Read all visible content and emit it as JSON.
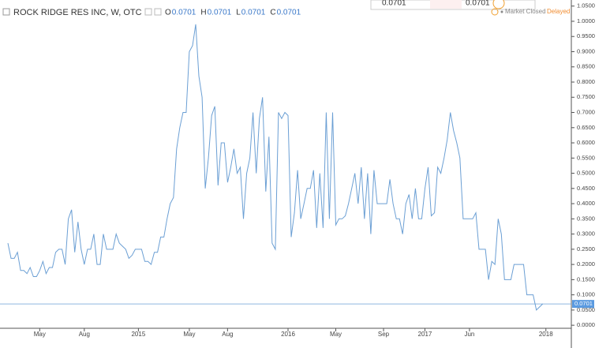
{
  "chart_data": {
    "type": "line",
    "title": "ROCK RIDGE RES INC, W, OTC",
    "ohlc": [
      {
        "key": "O",
        "value": "0.0701"
      },
      {
        "key": "H",
        "value": "0.0701"
      },
      {
        "key": "L",
        "value": "0.0701"
      },
      {
        "key": "C",
        "value": "0.0701"
      }
    ],
    "quote_boxes": [
      "0.0701",
      "0.0701"
    ],
    "status": "Market Closed",
    "delay": "Delayed",
    "color": "#6b9fd4",
    "values": [
      0.27,
      0.22,
      0.22,
      0.24,
      0.18,
      0.18,
      0.17,
      0.19,
      0.16,
      0.16,
      0.18,
      0.21,
      0.17,
      0.19,
      0.19,
      0.24,
      0.25,
      0.25,
      0.2,
      0.35,
      0.38,
      0.24,
      0.34,
      0.25,
      0.2,
      0.25,
      0.25,
      0.3,
      0.2,
      0.2,
      0.3,
      0.25,
      0.25,
      0.25,
      0.3,
      0.27,
      0.26,
      0.25,
      0.22,
      0.23,
      0.25,
      0.25,
      0.25,
      0.21,
      0.21,
      0.2,
      0.24,
      0.24,
      0.29,
      0.29,
      0.35,
      0.4,
      0.42,
      0.58,
      0.65,
      0.7,
      0.7,
      0.9,
      0.92,
      0.99,
      0.82,
      0.75,
      0.45,
      0.55,
      0.69,
      0.72,
      0.46,
      0.6,
      0.6,
      0.47,
      0.52,
      0.58,
      0.5,
      0.52,
      0.35,
      0.5,
      0.55,
      0.7,
      0.5,
      0.68,
      0.75,
      0.44,
      0.62,
      0.27,
      0.25,
      0.7,
      0.68,
      0.7,
      0.69,
      0.29,
      0.37,
      0.51,
      0.35,
      0.4,
      0.45,
      0.45,
      0.51,
      0.32,
      0.5,
      0.32,
      0.7,
      0.35,
      0.7,
      0.33,
      0.35,
      0.35,
      0.36,
      0.4,
      0.45,
      0.5,
      0.4,
      0.52,
      0.35,
      0.5,
      0.3,
      0.51,
      0.4,
      0.4,
      0.4,
      0.4,
      0.48,
      0.4,
      0.35,
      0.35,
      0.3,
      0.4,
      0.43,
      0.35,
      0.45,
      0.35,
      0.35,
      0.45,
      0.52,
      0.36,
      0.37,
      0.52,
      0.5,
      0.55,
      0.61,
      0.7,
      0.64,
      0.6,
      0.55,
      0.35,
      0.35,
      0.35,
      0.35,
      0.37,
      0.25,
      0.25,
      0.25,
      0.15,
      0.21,
      0.2,
      0.35,
      0.3,
      0.15,
      0.15,
      0.15,
      0.2,
      0.2,
      0.2,
      0.2,
      0.1,
      0.1,
      0.1,
      0.05,
      0.06,
      0.0701
    ],
    "xlim": [
      0,
      176
    ],
    "xticks": [
      {
        "value": 10,
        "label": "May"
      },
      {
        "value": 24,
        "label": "Aug"
      },
      {
        "value": 41,
        "label": "2015"
      },
      {
        "value": 57,
        "label": "May"
      },
      {
        "value": 69,
        "label": "Aug"
      },
      {
        "value": 88,
        "label": "2016"
      },
      {
        "value": 103,
        "label": "May"
      },
      {
        "value": 118,
        "label": "Sep"
      },
      {
        "value": 131,
        "label": "2017"
      },
      {
        "value": 145,
        "label": "Jun"
      },
      {
        "value": 169,
        "label": "2018"
      }
    ],
    "ylim": [
      -0.01,
      1.07
    ],
    "yticks": [
      {
        "value": 0,
        "label": "0.0000"
      },
      {
        "value": 0.05,
        "label": "0.0500"
      },
      {
        "value": 0.1,
        "label": "0.1000"
      },
      {
        "value": 0.15,
        "label": "0.1500"
      },
      {
        "value": 0.2,
        "label": "0.2000"
      },
      {
        "value": 0.25,
        "label": "0.2500"
      },
      {
        "value": 0.3,
        "label": "0.3000"
      },
      {
        "value": 0.35,
        "label": "0.3500"
      },
      {
        "value": 0.4,
        "label": "0.4000"
      },
      {
        "value": 0.45,
        "label": "0.4500"
      },
      {
        "value": 0.5,
        "label": "0.5000"
      },
      {
        "value": 0.55,
        "label": "0.5500"
      },
      {
        "value": 0.6,
        "label": "0.6000"
      },
      {
        "value": 0.65,
        "label": "0.6500"
      },
      {
        "value": 0.7,
        "label": "0.7000"
      },
      {
        "value": 0.75,
        "label": "0.7500"
      },
      {
        "value": 0.8,
        "label": "0.8000"
      },
      {
        "value": 0.85,
        "label": "0.8500"
      },
      {
        "value": 0.9,
        "label": "0.9000"
      },
      {
        "value": 0.95,
        "label": "0.9500"
      },
      {
        "value": 1,
        "label": "1.0000"
      },
      {
        "value": 1.05,
        "label": "1.0500"
      }
    ]
  }
}
